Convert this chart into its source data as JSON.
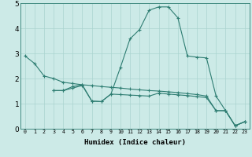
{
  "xlabel": "Humidex (Indice chaleur)",
  "bg_color": "#cceae7",
  "grid_color": "#aad4d0",
  "line_color": "#2e7d72",
  "xlim": [
    -0.5,
    23.5
  ],
  "ylim": [
    0,
    5
  ],
  "xticks": [
    0,
    1,
    2,
    3,
    4,
    5,
    6,
    7,
    8,
    9,
    10,
    11,
    12,
    13,
    14,
    15,
    16,
    17,
    18,
    19,
    20,
    21,
    22,
    23
  ],
  "yticks": [
    0,
    1,
    2,
    3,
    4,
    5
  ],
  "series1_x": [
    0,
    1,
    2,
    3,
    4,
    5,
    6,
    7,
    8,
    9,
    10,
    11,
    12,
    13,
    14,
    15,
    16,
    17,
    18,
    19,
    20,
    21,
    22,
    23
  ],
  "series1_y": [
    2.9,
    2.6,
    2.1,
    2.0,
    1.85,
    1.8,
    1.75,
    1.72,
    1.68,
    1.65,
    1.62,
    1.58,
    1.55,
    1.52,
    1.5,
    1.47,
    1.44,
    1.4,
    1.36,
    1.3,
    0.72,
    0.72,
    0.12,
    0.28
  ],
  "series2_x": [
    3,
    4,
    5,
    6,
    7,
    8,
    9,
    10,
    11,
    12,
    13,
    14,
    15,
    16,
    17,
    18,
    19,
    20,
    21,
    22,
    23
  ],
  "series2_y": [
    1.52,
    1.52,
    1.68,
    1.75,
    1.1,
    1.08,
    1.38,
    1.36,
    1.34,
    1.32,
    1.3,
    1.42,
    1.38,
    1.35,
    1.32,
    1.28,
    1.24,
    0.72,
    0.72,
    0.12,
    0.28
  ],
  "series3_x": [
    3,
    4,
    5,
    6,
    7,
    8,
    9,
    10,
    11,
    12,
    13,
    14,
    15,
    16,
    17,
    18,
    19,
    20,
    21,
    22,
    23
  ],
  "series3_y": [
    1.52,
    1.52,
    1.62,
    1.72,
    1.1,
    1.08,
    1.38,
    2.45,
    3.58,
    3.95,
    4.72,
    4.85,
    4.85,
    4.42,
    2.9,
    2.85,
    2.82,
    1.3,
    0.72,
    0.12,
    0.28
  ]
}
